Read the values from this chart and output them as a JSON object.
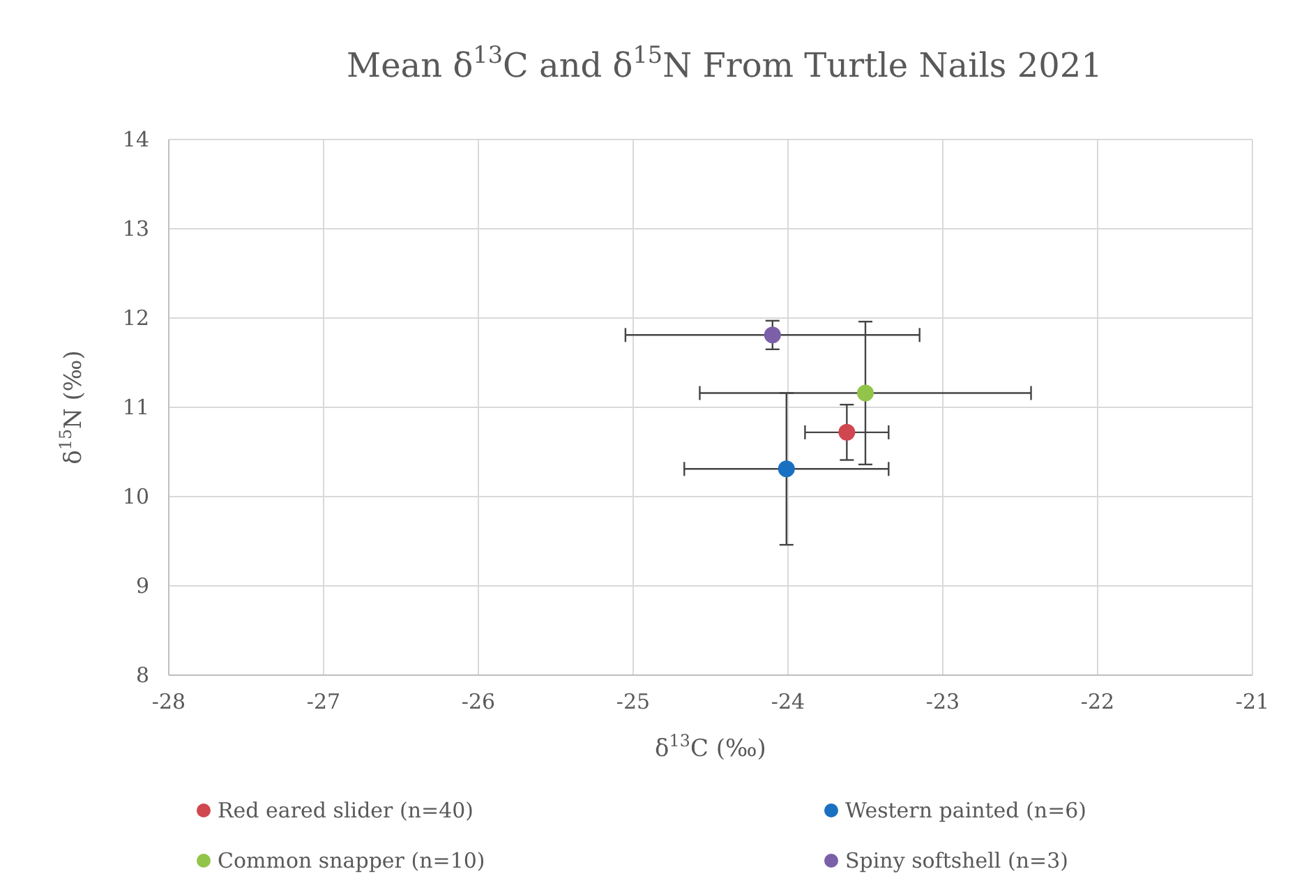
{
  "chart_data": {
    "type": "scatter",
    "title": "Mean δ$^{13}$C and δ$^{15}$N From Turtle Nails 2021",
    "xlabel": "δ$^{13}$C (‰)",
    "ylabel": "δ$^{15}$N (‰)",
    "xlim": [
      -28,
      -21
    ],
    "xticks": [
      -28,
      -27,
      -26,
      -25,
      -24,
      -23,
      -22,
      -21
    ],
    "ylim": [
      8,
      14
    ],
    "yticks": [
      8,
      9,
      10,
      11,
      12,
      13,
      14
    ],
    "grid": true,
    "legend": "bottom",
    "marker": "circle",
    "series": [
      {
        "name": "Red eared slider (n=40)",
        "color": "#d0474f",
        "x": [
          -23.62
        ],
        "values": [
          10.72
        ],
        "xerrors": [
          0.27
        ],
        "errors": [
          0.31
        ]
      },
      {
        "name": "Western painted (n=6)",
        "color": "#1a70c0",
        "x": [
          -24.01
        ],
        "values": [
          10.31
        ],
        "xerrors": [
          0.66
        ],
        "errors": [
          0.85
        ]
      },
      {
        "name": "Common snapper (n=10)",
        "color": "#92c44a",
        "x": [
          -23.5
        ],
        "values": [
          11.16
        ],
        "xerrors": [
          1.07
        ],
        "errors": [
          0.8
        ]
      },
      {
        "name": "Spiny softshell (n=3)",
        "color": "#7b5fa8",
        "x": [
          -24.1
        ],
        "values": [
          11.81
        ],
        "xerrors": [
          0.95
        ],
        "errors": [
          0.16
        ]
      }
    ]
  }
}
